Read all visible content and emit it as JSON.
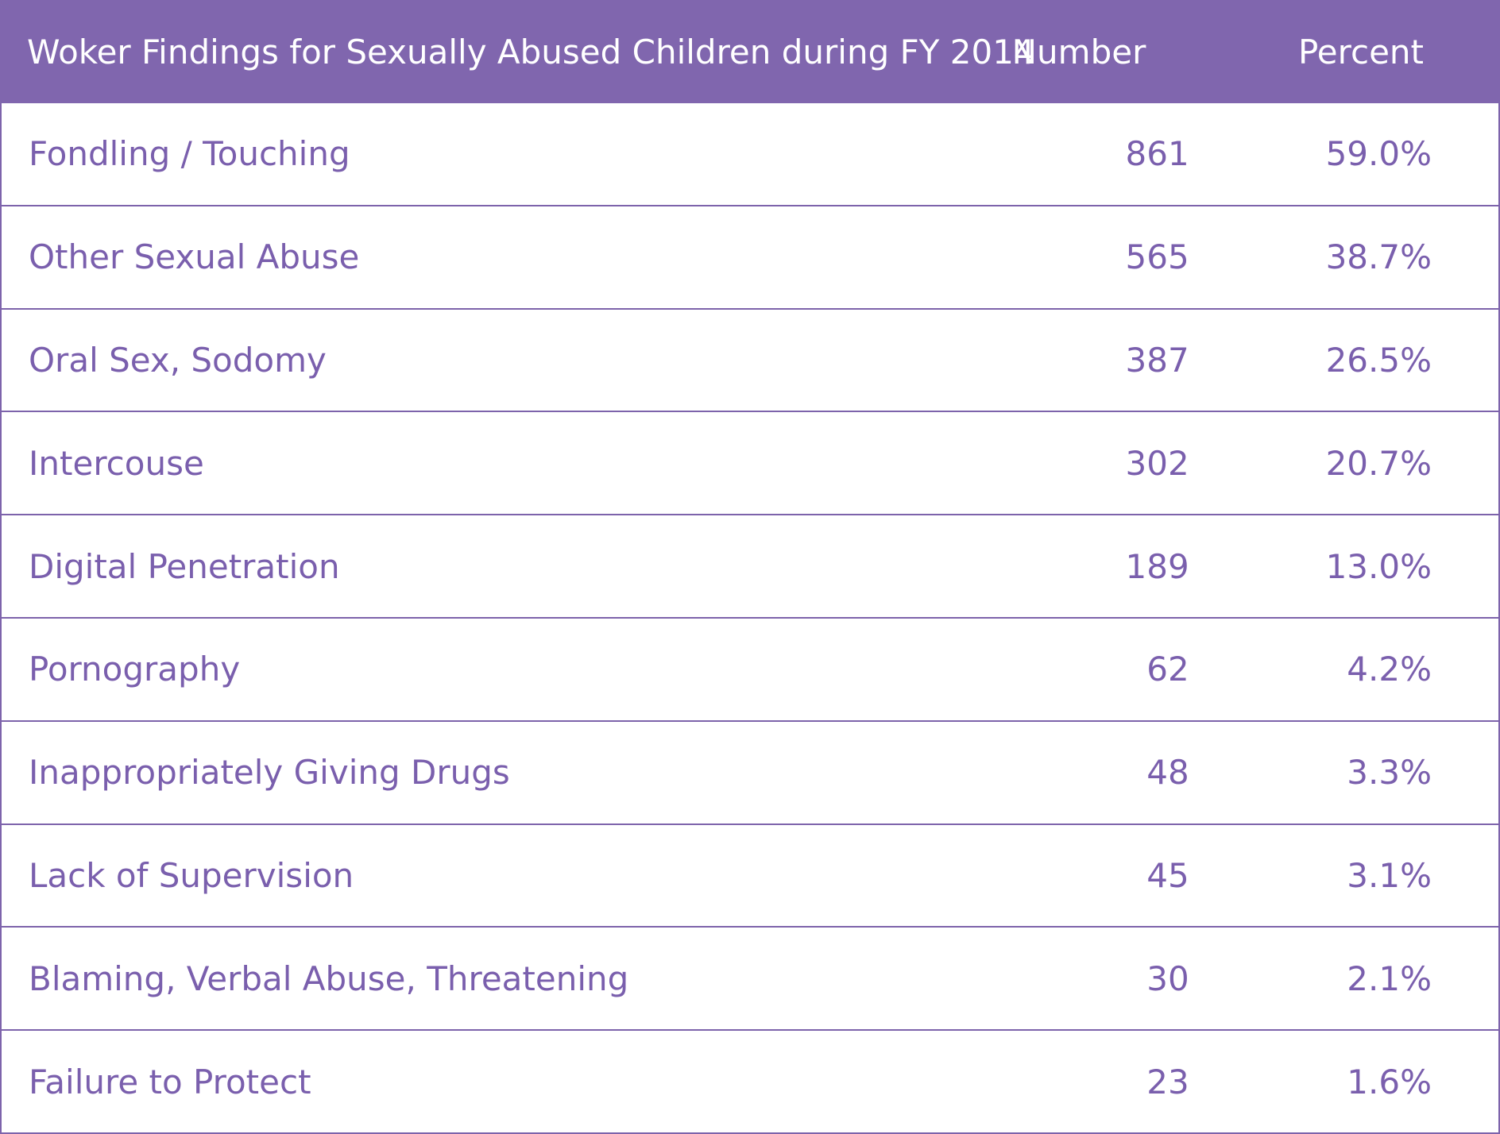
{
  "colors": {
    "header_bg": "#8066ae",
    "header_text": "#ffffff",
    "body_text": "#7a5fad",
    "rule": "#7d63ab"
  },
  "chart_data": {
    "type": "table",
    "columns": [
      "Woker Findings for Sexually Abused Children during FY 2014",
      "Number",
      "Percent"
    ],
    "rows": [
      {
        "label": "Fondling /  Touching",
        "number": "861",
        "percent": "59.0%"
      },
      {
        "label": "Other Sexual Abuse",
        "number": "565",
        "percent": "38.7%"
      },
      {
        "label": "Oral Sex, Sodomy",
        "number": "387",
        "percent": "26.5%"
      },
      {
        "label": "Intercouse",
        "number": "302",
        "percent": "20.7%"
      },
      {
        "label": "Digital Penetration",
        "number": "189",
        "percent": "13.0%"
      },
      {
        "label": "Pornography",
        "number": "62",
        "percent": "4.2%"
      },
      {
        "label": "Inappropriately Giving Drugs",
        "number": "48",
        "percent": "3.3%"
      },
      {
        "label": "Lack of Supervision",
        "number": "45",
        "percent": "3.1%"
      },
      {
        "label": "Blaming, Verbal Abuse, Threatening",
        "number": "30",
        "percent": "2.1%"
      },
      {
        "label": "Failure to Protect",
        "number": "23",
        "percent": "1.6%"
      }
    ]
  }
}
